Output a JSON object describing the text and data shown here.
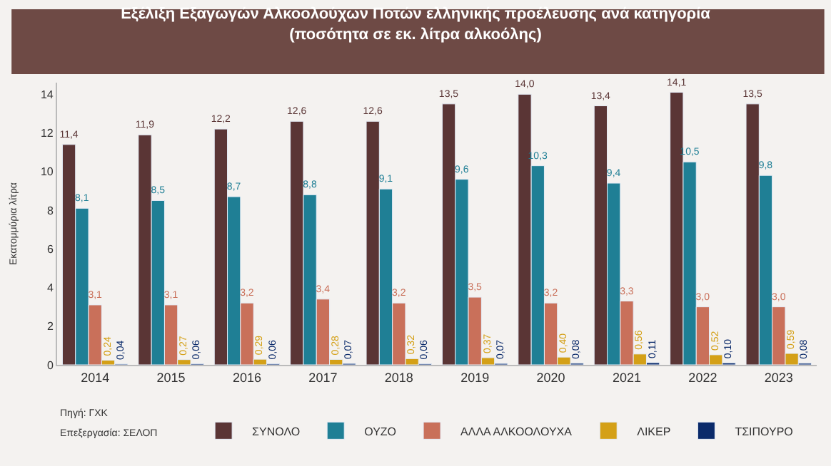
{
  "chart_data": {
    "type": "bar",
    "title": "Εξέλιξη Εξαγωγών Αλκοολούχων Ποτών ελληνικής προέλευσης ανά κατηγορία",
    "subtitle": "(ποσότητα σε εκ. λίτρα αλκοόλης)",
    "ylabel": "Εκατομμύρια λίτρα",
    "categories": [
      "2014",
      "2015",
      "2016",
      "2017",
      "2018",
      "2019",
      "2020",
      "2021",
      "2022",
      "2023"
    ],
    "series": [
      {
        "name": "ΣΥΝΟΛΟ",
        "color": "#5a3535",
        "values": [
          11.4,
          11.9,
          12.2,
          12.6,
          12.6,
          13.5,
          14.0,
          13.4,
          14.1,
          13.5
        ],
        "value_labels": [
          "11,4",
          "11,9",
          "12,2",
          "12,6",
          "12,6",
          "13,5",
          "14,0",
          "13,4",
          "14,1",
          "13,5"
        ]
      },
      {
        "name": "ΟΥΖΟ",
        "color": "#1f7f95",
        "values": [
          8.1,
          8.5,
          8.7,
          8.8,
          9.1,
          9.6,
          10.3,
          9.4,
          10.5,
          9.8
        ],
        "value_labels": [
          "8,1",
          "8,5",
          "8,7",
          "8,8",
          "9,1",
          "9,6",
          "10,3",
          "9,4",
          "10,5",
          "9,8"
        ]
      },
      {
        "name": "ΑΛΛΑ ΑΛΚΟΟΛΟΥΧΑ",
        "color": "#c9705a",
        "values": [
          3.1,
          3.1,
          3.2,
          3.4,
          3.2,
          3.5,
          3.2,
          3.3,
          3.0,
          3.0
        ],
        "value_labels": [
          "3,1",
          "3,1",
          "3,2",
          "3,4",
          "3,2",
          "3,5",
          "3,2",
          "3,3",
          "3,0",
          "3,0"
        ]
      },
      {
        "name": "ΛΙΚΕΡ",
        "color": "#d4a017",
        "values": [
          0.24,
          0.27,
          0.29,
          0.28,
          0.32,
          0.37,
          0.4,
          0.56,
          0.52,
          0.59
        ],
        "value_labels": [
          "0,24",
          "0,27",
          "0,29",
          "0,28",
          "0,32",
          "0,37",
          "0,40",
          "0,56",
          "0,52",
          "0,59"
        ]
      },
      {
        "name": "ΤΣΙΠΟΥΡΟ",
        "color": "#0a2a6a",
        "values": [
          0.04,
          0.06,
          0.06,
          0.07,
          0.06,
          0.07,
          0.08,
          0.11,
          0.1,
          0.08
        ],
        "value_labels": [
          "0,04",
          "0,06",
          "0,06",
          "0,07",
          "0,06",
          "0,07",
          "0,08",
          "0,11",
          "0,10",
          "0,08"
        ]
      }
    ],
    "ylim": [
      0,
      14.6
    ],
    "yticks": [
      0,
      2,
      4,
      6,
      8,
      10,
      12,
      14
    ],
    "grid": false,
    "legend": "bottom",
    "annotations": [
      "Πηγή: ΓΧΚ",
      "Επεξεργασία: ΣΕΛΟΠ"
    ]
  }
}
